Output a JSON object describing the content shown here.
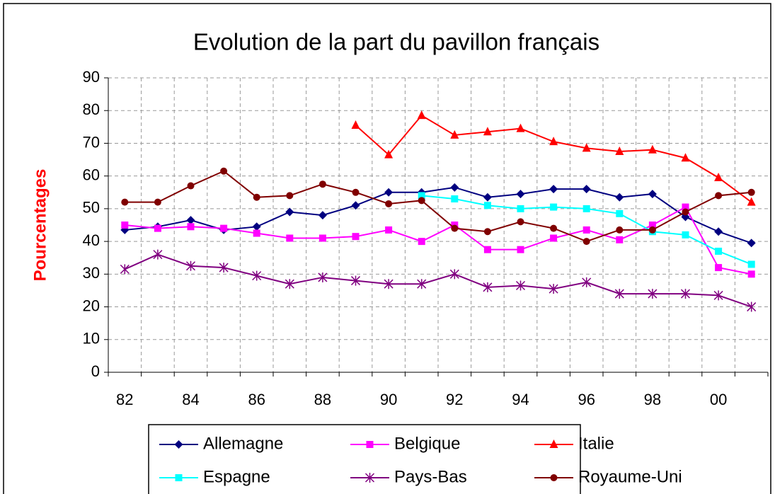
{
  "chart_data": {
    "type": "line",
    "title": "Evolution de la part du pavillon français",
    "y_label": "Pourcentages",
    "categories": [
      "82",
      null,
      "84",
      null,
      "86",
      null,
      "88",
      null,
      "90",
      null,
      "92",
      null,
      "94",
      null,
      "96",
      null,
      "98",
      null,
      "00",
      null
    ],
    "ylim": [
      0,
      90
    ],
    "yticks": [
      0,
      10,
      20,
      30,
      40,
      50,
      60,
      70,
      80,
      90
    ],
    "grid": true,
    "legend": "bottom",
    "series": [
      {
        "name": "Allemagne",
        "color": "#000080",
        "marker": "diamond",
        "values": [
          43.5,
          44.5,
          46.5,
          43.5,
          44.5,
          49,
          48,
          51,
          55,
          55,
          56.5,
          53.5,
          54.5,
          56,
          56,
          53.5,
          54.5,
          47.5,
          43,
          39.5
        ]
      },
      {
        "name": "Belgique",
        "color": "#ff00ff",
        "marker": "square",
        "values": [
          45,
          44,
          44.5,
          44,
          42.5,
          41,
          41,
          41.5,
          43.5,
          40,
          45,
          37.5,
          37.5,
          41,
          43.5,
          40.5,
          45,
          50.5,
          32,
          30
        ]
      },
      {
        "name": "Italie",
        "color": "#ff0000",
        "marker": "triangle",
        "values": [
          null,
          null,
          null,
          null,
          null,
          null,
          null,
          75.5,
          66.5,
          78.5,
          72.5,
          73.5,
          74.5,
          70.5,
          68.5,
          67.5,
          68,
          65.5,
          59.5,
          52
        ]
      },
      {
        "name": "Espagne",
        "color": "#00ffff",
        "marker": "square",
        "values": [
          null,
          null,
          null,
          null,
          null,
          null,
          null,
          null,
          null,
          54,
          53,
          51,
          50,
          50.5,
          50,
          48.5,
          43,
          42,
          37,
          33
        ]
      },
      {
        "name": "Pays-Bas",
        "color": "#800080",
        "marker": "star",
        "values": [
          31.5,
          36,
          32.5,
          32,
          29.5,
          27,
          29,
          28,
          27,
          27,
          30,
          26,
          26.5,
          25.5,
          27.5,
          24,
          24,
          24,
          23.5,
          20
        ]
      },
      {
        "name": "Royaume-Uni",
        "color": "#800000",
        "marker": "circle",
        "values": [
          52,
          52,
          57,
          61.5,
          53.5,
          54,
          57.5,
          55,
          51.5,
          52.5,
          44,
          43,
          46,
          44,
          40,
          43.5,
          43.5,
          49,
          54,
          55
        ]
      }
    ]
  }
}
